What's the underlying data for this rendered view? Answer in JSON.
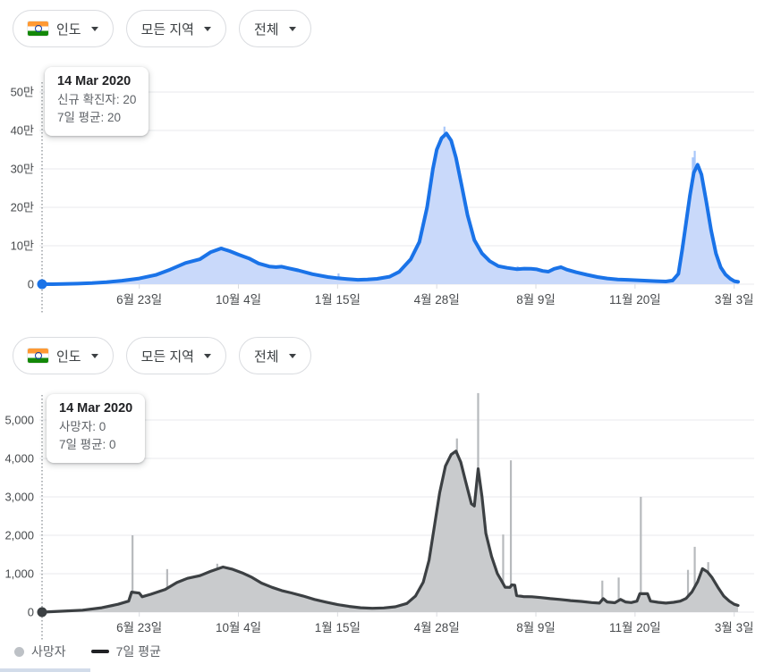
{
  "filters": [
    {
      "label": "인도",
      "icon": "india-flag",
      "dropdown_icon": "chevron-down"
    },
    {
      "label": "모든 지역",
      "dropdown_icon": "chevron-down"
    },
    {
      "label": "전체",
      "dropdown_icon": "chevron-down"
    }
  ],
  "tooltips": [
    {
      "date": "14 Mar 2020",
      "rows": [
        "신규 확진자: 20",
        "7일 평균: 20"
      ]
    },
    {
      "date": "14 Mar 2020",
      "rows": [
        "사망자: 0",
        "7일 평균: 0"
      ]
    }
  ],
  "legend": {
    "items": [
      {
        "label": "사망자",
        "marker": "dot",
        "color": "#bdc1c6"
      },
      {
        "label": "7일 평균",
        "marker": "line",
        "color": "#202124"
      }
    ]
  },
  "chart_data": [
    {
      "id": "cases",
      "type": "area",
      "x_range": [
        "2020-03-14",
        "2022-03-07"
      ],
      "ylim": [
        0,
        500000
      ],
      "grid": true,
      "y_ticks": [
        {
          "v": 0,
          "label": "0"
        },
        {
          "v": 100000,
          "label": "10만"
        },
        {
          "v": 200000,
          "label": "20만"
        },
        {
          "v": 300000,
          "label": "30만"
        },
        {
          "v": 400000,
          "label": "40만"
        },
        {
          "v": 500000,
          "label": "50만"
        }
      ],
      "x_ticks": [
        {
          "date": "2020-06-23",
          "label": "6월 23일"
        },
        {
          "date": "2020-10-04",
          "label": "10월 4일"
        },
        {
          "date": "2021-01-15",
          "label": "1월 15일"
        },
        {
          "date": "2021-04-28",
          "label": "4월 28일"
        },
        {
          "date": "2021-08-09",
          "label": "8월 9일"
        },
        {
          "date": "2021-11-20",
          "label": "11월 20일"
        },
        {
          "date": "2022-03-03",
          "label": "3월 3일"
        }
      ],
      "colors": {
        "line": "#1a73e8",
        "area": "#c9d9fa",
        "bars": "#a8c7fa",
        "dot": "#1a73e8"
      },
      "selected_point": {
        "date": "2020-03-14",
        "daily": 20,
        "avg": 20
      },
      "series": [
        {
          "name": "신규 확진자",
          "render": "bars",
          "points": [
            [
              "2020-09-17",
              97500
            ],
            [
              "2021-01-16",
              28000
            ],
            [
              "2021-05-06",
              410000
            ],
            [
              "2021-07-21",
              46500
            ],
            [
              "2022-01-19",
              330000
            ],
            [
              "2022-01-21",
              347000
            ],
            [
              "2022-01-26",
              306000
            ]
          ]
        },
        {
          "name": "7일 평균",
          "render": "line-area",
          "points": [
            [
              "2020-03-14",
              20
            ],
            [
              "2020-03-25",
              80
            ],
            [
              "2020-04-05",
              500
            ],
            [
              "2020-04-20",
              1300
            ],
            [
              "2020-05-05",
              2800
            ],
            [
              "2020-05-20",
              5000
            ],
            [
              "2020-06-05",
              9000
            ],
            [
              "2020-06-23",
              15000
            ],
            [
              "2020-07-10",
              24000
            ],
            [
              "2020-07-25",
              38000
            ],
            [
              "2020-08-10",
              55000
            ],
            [
              "2020-08-25",
              65000
            ],
            [
              "2020-09-05",
              83000
            ],
            [
              "2020-09-16",
              93000
            ],
            [
              "2020-09-25",
              86000
            ],
            [
              "2020-10-04",
              77000
            ],
            [
              "2020-10-15",
              67000
            ],
            [
              "2020-10-25",
              54000
            ],
            [
              "2020-11-05",
              46000
            ],
            [
              "2020-11-12",
              44500
            ],
            [
              "2020-11-18",
              45500
            ],
            [
              "2020-11-25",
              41500
            ],
            [
              "2020-12-05",
              36000
            ],
            [
              "2020-12-20",
              26000
            ],
            [
              "2021-01-05",
              18500
            ],
            [
              "2021-01-15",
              15500
            ],
            [
              "2021-01-25",
              13500
            ],
            [
              "2021-02-05",
              11500
            ],
            [
              "2021-02-15",
              12000
            ],
            [
              "2021-02-25",
              14000
            ],
            [
              "2021-03-10",
              19500
            ],
            [
              "2021-03-20",
              32000
            ],
            [
              "2021-04-01",
              65000
            ],
            [
              "2021-04-10",
              110000
            ],
            [
              "2021-04-18",
              200000
            ],
            [
              "2021-04-24",
              300000
            ],
            [
              "2021-04-28",
              350000
            ],
            [
              "2021-05-03",
              380000
            ],
            [
              "2021-05-08",
              392000
            ],
            [
              "2021-05-13",
              374000
            ],
            [
              "2021-05-18",
              329000
            ],
            [
              "2021-05-24",
              255000
            ],
            [
              "2021-05-30",
              180000
            ],
            [
              "2021-06-06",
              115000
            ],
            [
              "2021-06-14",
              80000
            ],
            [
              "2021-06-22",
              60000
            ],
            [
              "2021-07-01",
              47000
            ],
            [
              "2021-07-10",
              42500
            ],
            [
              "2021-07-20",
              39000
            ],
            [
              "2021-07-28",
              40500
            ],
            [
              "2021-08-04",
              40000
            ],
            [
              "2021-08-10",
              38500
            ],
            [
              "2021-08-16",
              34500
            ],
            [
              "2021-08-22",
              32500
            ],
            [
              "2021-08-28",
              40000
            ],
            [
              "2021-09-04",
              44500
            ],
            [
              "2021-09-10",
              38000
            ],
            [
              "2021-09-20",
              31000
            ],
            [
              "2021-10-01",
              24500
            ],
            [
              "2021-10-12",
              18500
            ],
            [
              "2021-10-22",
              15000
            ],
            [
              "2021-11-02",
              12000
            ],
            [
              "2021-11-12",
              11500
            ],
            [
              "2021-11-22",
              10200
            ],
            [
              "2021-12-02",
              9000
            ],
            [
              "2021-12-12",
              8000
            ],
            [
              "2021-12-22",
              7000
            ],
            [
              "2021-12-29",
              9500
            ],
            [
              "2022-01-04",
              27000
            ],
            [
              "2022-01-08",
              90000
            ],
            [
              "2022-01-12",
              160000
            ],
            [
              "2022-01-16",
              231000
            ],
            [
              "2022-01-20",
              290000
            ],
            [
              "2022-01-24",
              311000
            ],
            [
              "2022-01-28",
              285000
            ],
            [
              "2022-02-02",
              215000
            ],
            [
              "2022-02-07",
              140000
            ],
            [
              "2022-02-12",
              80000
            ],
            [
              "2022-02-17",
              44000
            ],
            [
              "2022-02-22",
              25000
            ],
            [
              "2022-02-27",
              14000
            ],
            [
              "2022-03-03",
              8000
            ],
            [
              "2022-03-07",
              6000
            ]
          ]
        }
      ]
    },
    {
      "id": "deaths",
      "type": "area",
      "x_range": [
        "2020-03-14",
        "2022-03-07"
      ],
      "ylim": [
        0,
        5000
      ],
      "grid": true,
      "y_ticks": [
        {
          "v": 0,
          "label": "0"
        },
        {
          "v": 1000,
          "label": "1,000"
        },
        {
          "v": 2000,
          "label": "2,000"
        },
        {
          "v": 3000,
          "label": "3,000"
        },
        {
          "v": 4000,
          "label": "4,000"
        },
        {
          "v": 5000,
          "label": "5,000"
        }
      ],
      "x_ticks": [
        {
          "date": "2020-06-23",
          "label": "6월 23일"
        },
        {
          "date": "2020-10-04",
          "label": "10월 4일"
        },
        {
          "date": "2021-01-15",
          "label": "1월 15일"
        },
        {
          "date": "2021-04-28",
          "label": "4월 28일"
        },
        {
          "date": "2021-08-09",
          "label": "8월 9일"
        },
        {
          "date": "2021-11-20",
          "label": "11월 20일"
        },
        {
          "date": "2022-03-03",
          "label": "3월 3일"
        }
      ],
      "colors": {
        "line": "#3c4043",
        "area": "#c9cbcd",
        "bars": "#b7babd",
        "dot": "#3c4043"
      },
      "selected_point": {
        "date": "2020-03-14",
        "daily": 0,
        "avg": 0
      },
      "series": [
        {
          "name": "사망자",
          "render": "bars",
          "points": [
            [
              "2020-06-16",
              2000
            ],
            [
              "2020-07-22",
              1120
            ],
            [
              "2020-09-12",
              1260
            ],
            [
              "2021-05-19",
              4520
            ],
            [
              "2021-06-10",
              5700
            ],
            [
              "2021-07-06",
              2020
            ],
            [
              "2021-07-14",
              3950
            ],
            [
              "2021-10-17",
              820
            ],
            [
              "2021-11-03",
              900
            ],
            [
              "2021-11-26",
              3000
            ],
            [
              "2022-01-14",
              1100
            ],
            [
              "2022-01-21",
              1700
            ],
            [
              "2022-02-04",
              1300
            ]
          ]
        },
        {
          "name": "7일 평균",
          "render": "line-area",
          "points": [
            [
              "2020-03-14",
              0
            ],
            [
              "2020-04-05",
              25
            ],
            [
              "2020-04-25",
              50
            ],
            [
              "2020-05-15",
              115
            ],
            [
              "2020-06-01",
              205
            ],
            [
              "2020-06-12",
              285
            ],
            [
              "2020-06-15",
              520
            ],
            [
              "2020-06-23",
              495
            ],
            [
              "2020-06-26",
              400
            ],
            [
              "2020-07-05",
              465
            ],
            [
              "2020-07-20",
              590
            ],
            [
              "2020-08-01",
              770
            ],
            [
              "2020-08-12",
              880
            ],
            [
              "2020-08-25",
              950
            ],
            [
              "2020-09-05",
              1060
            ],
            [
              "2020-09-18",
              1175
            ],
            [
              "2020-09-28",
              1115
            ],
            [
              "2020-10-08",
              1020
            ],
            [
              "2020-10-18",
              905
            ],
            [
              "2020-10-28",
              755
            ],
            [
              "2020-11-08",
              645
            ],
            [
              "2020-11-18",
              560
            ],
            [
              "2020-11-28",
              500
            ],
            [
              "2020-12-10",
              420
            ],
            [
              "2020-12-22",
              330
            ],
            [
              "2021-01-03",
              260
            ],
            [
              "2021-01-15",
              195
            ],
            [
              "2021-01-27",
              150
            ],
            [
              "2021-02-08",
              115
            ],
            [
              "2021-02-20",
              100
            ],
            [
              "2021-03-04",
              110
            ],
            [
              "2021-03-16",
              140
            ],
            [
              "2021-03-28",
              225
            ],
            [
              "2021-04-06",
              420
            ],
            [
              "2021-04-14",
              780
            ],
            [
              "2021-04-20",
              1350
            ],
            [
              "2021-04-26",
              2300
            ],
            [
              "2021-05-01",
              3100
            ],
            [
              "2021-05-07",
              3800
            ],
            [
              "2021-05-13",
              4100
            ],
            [
              "2021-05-18",
              4190
            ],
            [
              "2021-05-23",
              3900
            ],
            [
              "2021-05-28",
              3400
            ],
            [
              "2021-06-03",
              2820
            ],
            [
              "2021-06-06",
              2760
            ],
            [
              "2021-06-10",
              3730
            ],
            [
              "2021-06-14",
              3000
            ],
            [
              "2021-06-18",
              2050
            ],
            [
              "2021-06-24",
              1450
            ],
            [
              "2021-06-30",
              1000
            ],
            [
              "2021-07-04",
              830
            ],
            [
              "2021-07-08",
              650
            ],
            [
              "2021-07-13",
              645
            ],
            [
              "2021-07-15",
              710
            ],
            [
              "2021-07-18",
              700
            ],
            [
              "2021-07-20",
              430
            ],
            [
              "2021-07-27",
              405
            ],
            [
              "2021-08-05",
              400
            ],
            [
              "2021-08-14",
              380
            ],
            [
              "2021-08-24",
              350
            ],
            [
              "2021-09-03",
              330
            ],
            [
              "2021-09-14",
              300
            ],
            [
              "2021-09-25",
              280
            ],
            [
              "2021-10-06",
              250
            ],
            [
              "2021-10-14",
              235
            ],
            [
              "2021-10-18",
              350
            ],
            [
              "2021-10-22",
              265
            ],
            [
              "2021-10-30",
              245
            ],
            [
              "2021-11-05",
              330
            ],
            [
              "2021-11-10",
              265
            ],
            [
              "2021-11-16",
              250
            ],
            [
              "2021-11-22",
              285
            ],
            [
              "2021-11-25",
              480
            ],
            [
              "2021-12-03",
              480
            ],
            [
              "2021-12-06",
              285
            ],
            [
              "2021-12-14",
              255
            ],
            [
              "2021-12-22",
              235
            ],
            [
              "2021-12-30",
              255
            ],
            [
              "2022-01-06",
              285
            ],
            [
              "2022-01-12",
              355
            ],
            [
              "2022-01-18",
              520
            ],
            [
              "2022-01-24",
              790
            ],
            [
              "2022-01-29",
              1130
            ],
            [
              "2022-02-03",
              1050
            ],
            [
              "2022-02-08",
              900
            ],
            [
              "2022-02-14",
              650
            ],
            [
              "2022-02-20",
              420
            ],
            [
              "2022-02-26",
              285
            ],
            [
              "2022-03-03",
              205
            ],
            [
              "2022-03-07",
              175
            ]
          ]
        }
      ]
    }
  ]
}
